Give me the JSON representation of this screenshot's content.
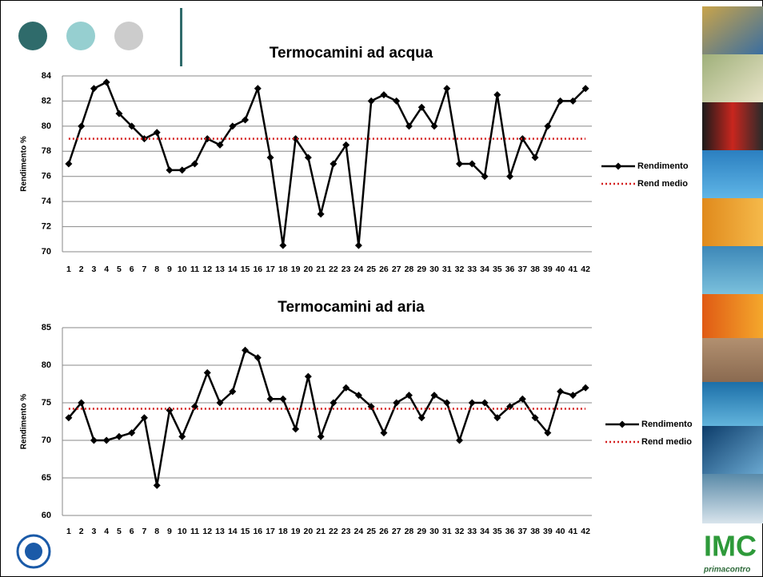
{
  "chart_data": [
    {
      "type": "line",
      "title": "Termocamini ad acqua",
      "y_label": "Rendimento %",
      "categories": [
        "1",
        "2",
        "3",
        "4",
        "5",
        "6",
        "7",
        "8",
        "9",
        "10",
        "11",
        "12",
        "13",
        "14",
        "15",
        "16",
        "17",
        "18",
        "19",
        "20",
        "21",
        "22",
        "23",
        "24",
        "25",
        "26",
        "27",
        "28",
        "29",
        "30",
        "31",
        "32",
        "33",
        "34",
        "35",
        "36",
        "37",
        "38",
        "39",
        "40",
        "41",
        "42"
      ],
      "series": [
        {
          "name": "Rendimento",
          "color": "#000000",
          "marker": "diamond",
          "dash": "solid",
          "values": [
            77,
            80,
            83,
            83.5,
            81,
            80,
            79,
            79.5,
            76.5,
            76.5,
            77,
            79,
            78.5,
            80,
            80.5,
            83,
            77.5,
            70.5,
            79,
            77.5,
            73,
            77,
            78.5,
            70.5,
            82,
            82.5,
            82,
            80,
            81.5,
            80,
            83,
            77,
            77,
            76,
            82.5,
            76,
            79,
            77.5,
            80,
            82,
            82,
            83
          ]
        },
        {
          "name": "Rend medio",
          "color": "#d42020",
          "marker": "none",
          "dash": "dotted",
          "values": [
            79,
            79,
            79,
            79,
            79,
            79,
            79,
            79,
            79,
            79,
            79,
            79,
            79,
            79,
            79,
            79,
            79,
            79,
            79,
            79,
            79,
            79,
            79,
            79,
            79,
            79,
            79,
            79,
            79,
            79,
            79,
            79,
            79,
            79,
            79,
            79,
            79,
            79,
            79,
            79,
            79,
            79
          ]
        }
      ],
      "ylim": [
        70,
        84
      ],
      "yticks": [
        70,
        72,
        74,
        76,
        78,
        80,
        82,
        84
      ],
      "grid": true,
      "legend": "right"
    },
    {
      "type": "line",
      "title": "Termocamini ad aria",
      "y_label": "Rendimento %",
      "categories": [
        "1",
        "2",
        "3",
        "4",
        "5",
        "6",
        "7",
        "8",
        "9",
        "10",
        "11",
        "12",
        "13",
        "14",
        "15",
        "16",
        "17",
        "18",
        "19",
        "20",
        "21",
        "22",
        "23",
        "24",
        "25",
        "26",
        "27",
        "28",
        "29",
        "30",
        "31",
        "32",
        "33",
        "34",
        "35",
        "36",
        "37",
        "38",
        "39",
        "40",
        "41",
        "42"
      ],
      "series": [
        {
          "name": "Rendimento",
          "color": "#000000",
          "marker": "diamond",
          "dash": "solid",
          "values": [
            73,
            75,
            70,
            70,
            70.5,
            71,
            73,
            64,
            74,
            70.5,
            74.5,
            79,
            75,
            76.5,
            82,
            81,
            75.5,
            75.5,
            71.5,
            78.5,
            70.5,
            75,
            77,
            76,
            74.5,
            71,
            75,
            76,
            73,
            76,
            75,
            70,
            75,
            75,
            73,
            74.5,
            75.5,
            73,
            71,
            76.5,
            76,
            77
          ]
        },
        {
          "name": "Rend medio",
          "color": "#d42020",
          "marker": "none",
          "dash": "dotted",
          "values": [
            74.2,
            74.2,
            74.2,
            74.2,
            74.2,
            74.2,
            74.2,
            74.2,
            74.2,
            74.2,
            74.2,
            74.2,
            74.2,
            74.2,
            74.2,
            74.2,
            74.2,
            74.2,
            74.2,
            74.2,
            74.2,
            74.2,
            74.2,
            74.2,
            74.2,
            74.2,
            74.2,
            74.2,
            74.2,
            74.2,
            74.2,
            74.2,
            74.2,
            74.2,
            74.2,
            74.2,
            74.2,
            74.2,
            74.2,
            74.2,
            74.2,
            74.2
          ]
        }
      ],
      "ylim": [
        60,
        85
      ],
      "yticks": [
        60,
        65,
        70,
        75,
        80,
        85
      ],
      "grid": true,
      "legend": "right"
    }
  ],
  "brand": {
    "logo": "IMC",
    "tagline": "primacontro"
  }
}
